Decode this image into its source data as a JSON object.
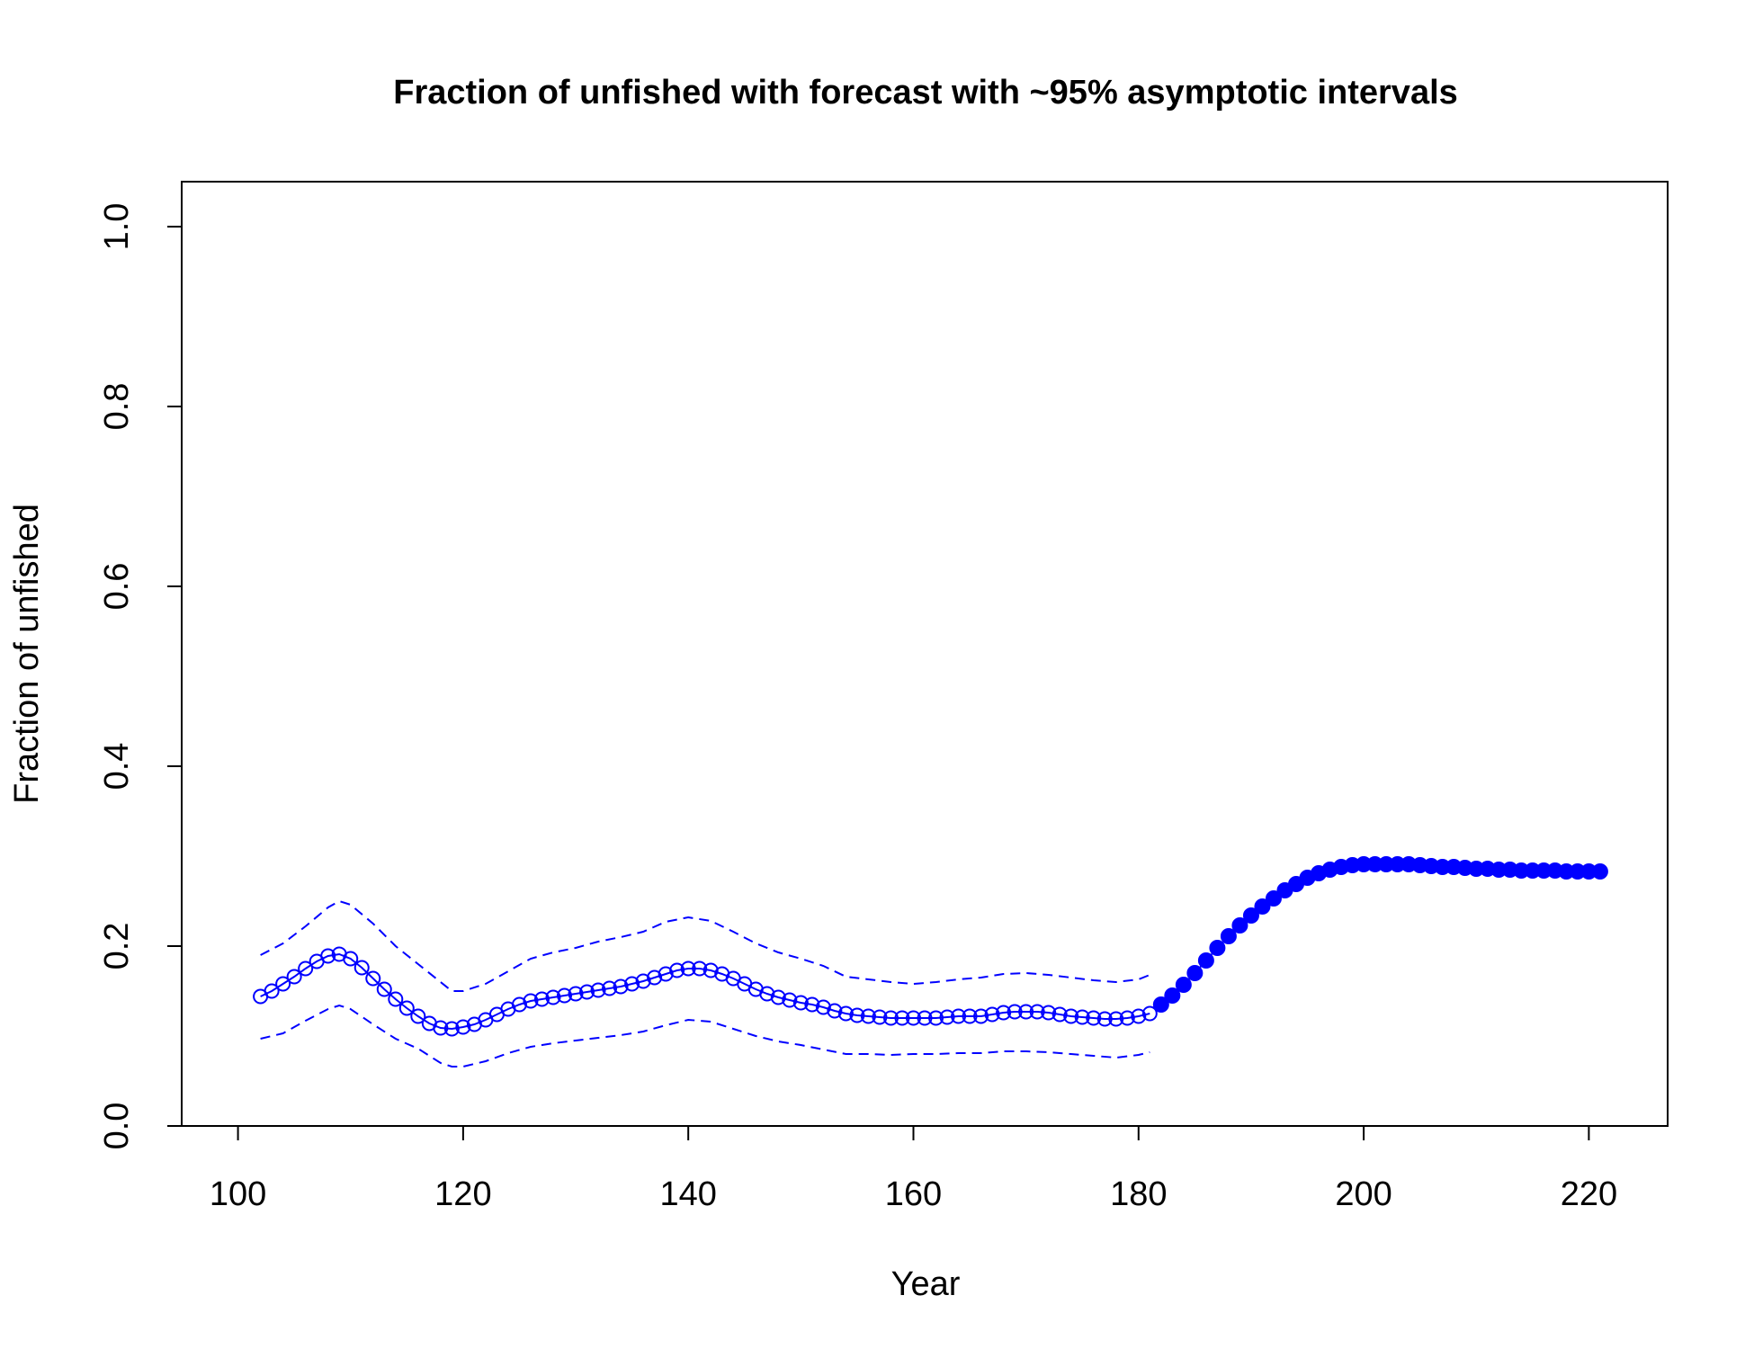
{
  "chart_data": {
    "type": "line",
    "title": "Fraction of unfished with forecast with ~95% asymptotic intervals",
    "xlabel": "Year",
    "ylabel": "Fraction of unfished",
    "xlim": [
      95,
      227
    ],
    "ylim": [
      0,
      1.05
    ],
    "x_ticks": [
      "100",
      "120",
      "140",
      "160",
      "180",
      "200",
      "220"
    ],
    "y_ticks": [
      "0.0",
      "0.2",
      "0.4",
      "0.6",
      "0.8",
      "1.0"
    ],
    "grid": false,
    "color": "#0000FF",
    "series": [
      {
        "role": "estimate",
        "marker": "open-circle",
        "x": [
          102,
          103,
          104,
          105,
          106,
          107,
          108,
          109,
          110,
          111,
          112,
          113,
          114,
          115,
          116,
          117,
          118,
          119,
          120,
          121,
          122,
          123,
          124,
          125,
          126,
          127,
          128,
          129,
          130,
          131,
          132,
          133,
          134,
          135,
          136,
          137,
          138,
          139,
          140,
          141,
          142,
          143,
          144,
          145,
          146,
          147,
          148,
          149,
          150,
          151,
          152,
          153,
          154,
          155,
          156,
          157,
          158,
          159,
          160,
          161,
          162,
          163,
          164,
          165,
          166,
          167,
          168,
          169,
          170,
          171,
          172,
          173,
          174,
          175,
          176,
          177,
          178,
          179,
          180,
          181
        ],
        "values": [
          0.144,
          0.15,
          0.158,
          0.166,
          0.175,
          0.183,
          0.189,
          0.191,
          0.186,
          0.176,
          0.164,
          0.152,
          0.141,
          0.131,
          0.122,
          0.114,
          0.109,
          0.108,
          0.11,
          0.113,
          0.118,
          0.124,
          0.13,
          0.135,
          0.139,
          0.141,
          0.143,
          0.145,
          0.147,
          0.149,
          0.151,
          0.153,
          0.155,
          0.158,
          0.161,
          0.165,
          0.169,
          0.173,
          0.175,
          0.175,
          0.173,
          0.169,
          0.164,
          0.158,
          0.152,
          0.147,
          0.143,
          0.14,
          0.137,
          0.135,
          0.132,
          0.128,
          0.125,
          0.123,
          0.122,
          0.121,
          0.12,
          0.12,
          0.12,
          0.12,
          0.12,
          0.121,
          0.122,
          0.122,
          0.122,
          0.124,
          0.126,
          0.127,
          0.127,
          0.127,
          0.126,
          0.124,
          0.122,
          0.121,
          0.12,
          0.119,
          0.119,
          0.12,
          0.122,
          0.125
        ]
      },
      {
        "role": "upper-95",
        "style": "dashed",
        "x": [
          102,
          104,
          106,
          108,
          109,
          110,
          112,
          114,
          116,
          118,
          119,
          120,
          122,
          124,
          126,
          128,
          130,
          132,
          134,
          136,
          138,
          140,
          142,
          144,
          146,
          148,
          150,
          152,
          154,
          156,
          158,
          160,
          162,
          164,
          166,
          168,
          170,
          172,
          174,
          176,
          178,
          180,
          181
        ],
        "values": [
          0.19,
          0.203,
          0.222,
          0.243,
          0.25,
          0.246,
          0.225,
          0.2,
          0.18,
          0.16,
          0.15,
          0.15,
          0.158,
          0.172,
          0.186,
          0.193,
          0.198,
          0.205,
          0.21,
          0.216,
          0.227,
          0.232,
          0.228,
          0.216,
          0.203,
          0.193,
          0.186,
          0.178,
          0.166,
          0.163,
          0.16,
          0.158,
          0.16,
          0.163,
          0.165,
          0.169,
          0.17,
          0.168,
          0.165,
          0.162,
          0.16,
          0.163,
          0.168
        ]
      },
      {
        "role": "lower-95",
        "style": "dashed",
        "x": [
          102,
          104,
          106,
          108,
          109,
          110,
          112,
          114,
          116,
          118,
          119,
          120,
          122,
          124,
          126,
          128,
          130,
          132,
          134,
          136,
          138,
          140,
          142,
          144,
          146,
          148,
          150,
          152,
          154,
          156,
          158,
          160,
          162,
          164,
          166,
          168,
          170,
          172,
          174,
          176,
          178,
          180,
          181
        ],
        "values": [
          0.097,
          0.103,
          0.117,
          0.13,
          0.134,
          0.13,
          0.113,
          0.097,
          0.086,
          0.07,
          0.066,
          0.066,
          0.072,
          0.081,
          0.088,
          0.092,
          0.095,
          0.098,
          0.101,
          0.105,
          0.112,
          0.118,
          0.116,
          0.108,
          0.1,
          0.094,
          0.09,
          0.085,
          0.08,
          0.08,
          0.079,
          0.08,
          0.08,
          0.081,
          0.081,
          0.083,
          0.083,
          0.082,
          0.08,
          0.078,
          0.076,
          0.079,
          0.082
        ]
      },
      {
        "role": "forecast",
        "marker": "filled-circle",
        "x": [
          182,
          183,
          184,
          185,
          186,
          187,
          188,
          189,
          190,
          191,
          192,
          193,
          194,
          195,
          196,
          197,
          198,
          199,
          200,
          201,
          202,
          203,
          204,
          205,
          206,
          207,
          208,
          209,
          210,
          211,
          212,
          213,
          214,
          215,
          216,
          217,
          218,
          219,
          220,
          221
        ],
        "values": [
          0.135,
          0.145,
          0.157,
          0.17,
          0.184,
          0.198,
          0.211,
          0.223,
          0.234,
          0.244,
          0.253,
          0.262,
          0.269,
          0.276,
          0.281,
          0.285,
          0.288,
          0.29,
          0.291,
          0.291,
          0.291,
          0.291,
          0.291,
          0.29,
          0.289,
          0.288,
          0.288,
          0.287,
          0.286,
          0.286,
          0.285,
          0.285,
          0.284,
          0.284,
          0.284,
          0.284,
          0.283,
          0.283,
          0.283,
          0.283
        ]
      }
    ]
  }
}
